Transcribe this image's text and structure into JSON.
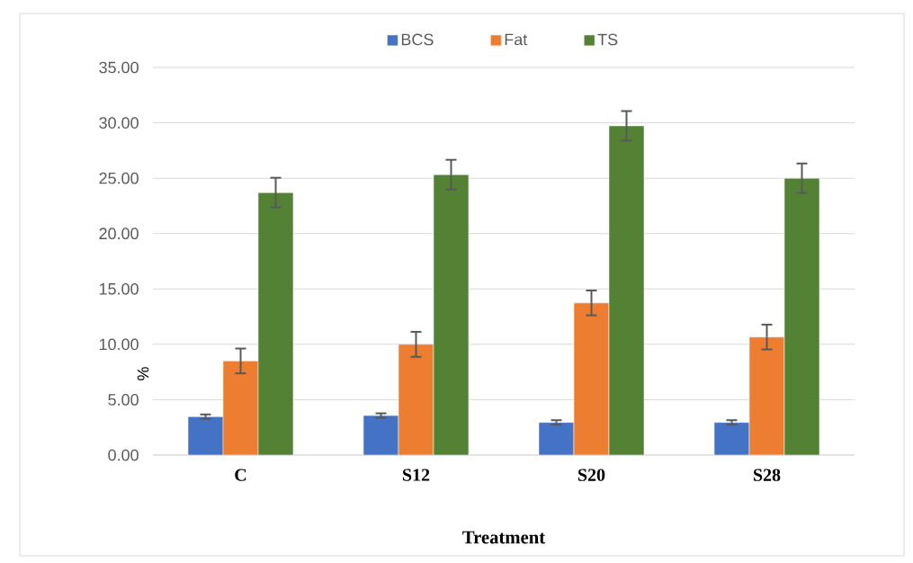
{
  "chart_data": {
    "type": "bar",
    "xlabel": "Treatment",
    "ylabel": "%",
    "categories": [
      "C",
      "S12",
      "S20",
      "S28"
    ],
    "series": [
      {
        "name": "BCS",
        "color": "#4472c4",
        "values": [
          3.47,
          3.57,
          2.95,
          2.95
        ],
        "errors": [
          0.2,
          0.2,
          0.2,
          0.2
        ]
      },
      {
        "name": "Fat",
        "color": "#ed7d31",
        "values": [
          8.5,
          10.0,
          13.74,
          10.66
        ],
        "errors": [
          1.12,
          1.13,
          1.12,
          1.12
        ]
      },
      {
        "name": "TS",
        "color": "#548235",
        "values": [
          23.7,
          25.32,
          29.73,
          25.0
        ],
        "errors": [
          1.34,
          1.34,
          1.33,
          1.33
        ]
      }
    ],
    "ylim": [
      0,
      35
    ],
    "yticks": [
      {
        "value": 0,
        "label": "0.00"
      },
      {
        "value": 5,
        "label": "5.00"
      },
      {
        "value": 10,
        "label": "10.00"
      },
      {
        "value": 15,
        "label": "15.00"
      },
      {
        "value": 20,
        "label": "20.00"
      },
      {
        "value": 25,
        "label": "25.00"
      },
      {
        "value": 30,
        "label": "30.00"
      },
      {
        "value": 35,
        "label": "35.00"
      }
    ],
    "grid": "y",
    "legend": "top"
  }
}
